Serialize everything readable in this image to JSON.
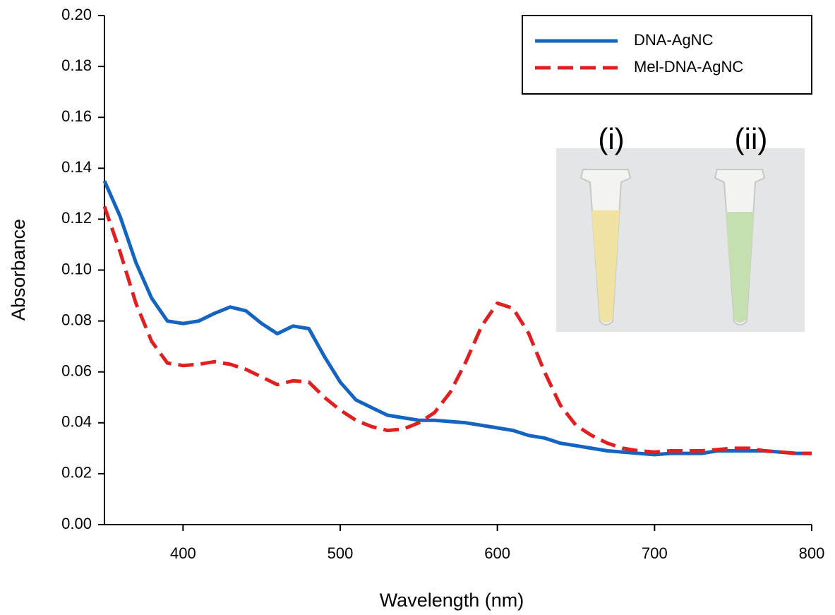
{
  "chart_data": {
    "type": "line",
    "x_label": "Wavelength (nm)",
    "y_label": "Absorbance",
    "xlim": [
      350,
      800
    ],
    "xticks": [
      400,
      500,
      600,
      700,
      800
    ],
    "ylim": [
      0,
      0.2
    ],
    "yticks": [
      {
        "value": 0,
        "label": "0.00"
      },
      0.02,
      0.04,
      0.06,
      0.08,
      {
        "value": 0.1,
        "label": "0.10"
      },
      0.12,
      0.14,
      0.16,
      0.18,
      {
        "value": 0.2,
        "label": "0.20"
      }
    ],
    "legend": "top-right",
    "annotations": [
      "(i)",
      "(ii)"
    ],
    "x": [
      350,
      360,
      370,
      380,
      390,
      400,
      410,
      420,
      430,
      440,
      450,
      460,
      470,
      480,
      490,
      500,
      510,
      520,
      530,
      540,
      550,
      560,
      570,
      580,
      590,
      600,
      610,
      620,
      630,
      640,
      650,
      660,
      670,
      680,
      690,
      700,
      710,
      720,
      730,
      740,
      750,
      760,
      770,
      780,
      790,
      800
    ],
    "series": [
      {
        "name": "DNA-AgNC",
        "color": "#1565c0",
        "dash": "solid",
        "values": [
          0.135,
          0.121,
          0.103,
          0.089,
          0.08,
          0.079,
          0.08,
          0.083,
          0.0855,
          0.084,
          0.079,
          0.075,
          0.078,
          0.077,
          0.066,
          0.056,
          0.049,
          0.046,
          0.043,
          0.042,
          0.041,
          0.041,
          0.0405,
          0.04,
          0.039,
          0.038,
          0.037,
          0.035,
          0.034,
          0.032,
          0.031,
          0.03,
          0.029,
          0.0285,
          0.028,
          0.0275,
          0.028,
          0.028,
          0.028,
          0.029,
          0.029,
          0.029,
          0.029,
          0.0285,
          0.028,
          0.028
        ]
      },
      {
        "name": "Mel-DNA-AgNC",
        "color": "#e02020",
        "dash": "dashed",
        "values": [
          0.125,
          0.107,
          0.087,
          0.072,
          0.0635,
          0.0625,
          0.063,
          0.064,
          0.063,
          0.061,
          0.058,
          0.055,
          0.0565,
          0.056,
          0.05,
          0.045,
          0.041,
          0.0385,
          0.037,
          0.0375,
          0.04,
          0.044,
          0.052,
          0.064,
          0.078,
          0.087,
          0.085,
          0.075,
          0.06,
          0.047,
          0.039,
          0.035,
          0.032,
          0.03,
          0.029,
          0.0285,
          0.029,
          0.029,
          0.029,
          0.0295,
          0.03,
          0.03,
          0.029,
          0.0285,
          0.028,
          0.028
        ]
      }
    ]
  }
}
